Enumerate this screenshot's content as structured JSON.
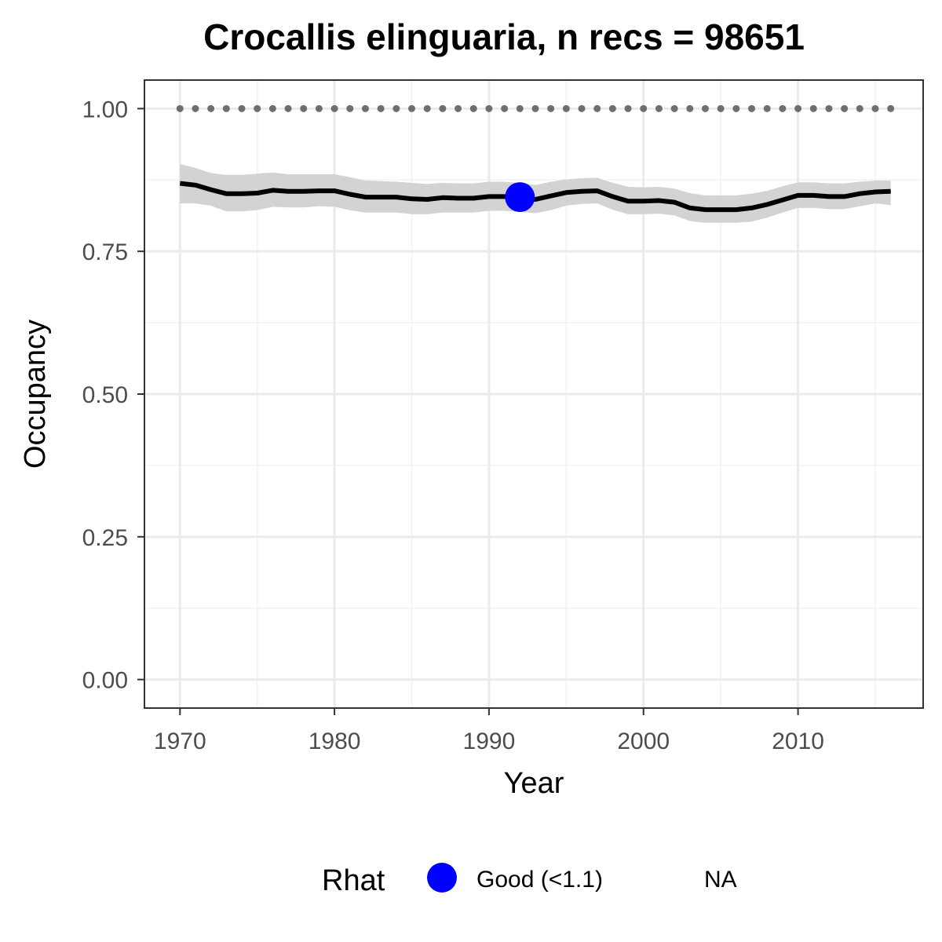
{
  "chart_data": {
    "type": "line",
    "title": "Crocallis elinguaria, n recs = 98651",
    "xlabel": "Year",
    "ylabel": "Occupancy",
    "xlim": [
      1967.7,
      2018.1
    ],
    "ylim": [
      -0.05,
      1.05
    ],
    "x_ticks": [
      1970,
      1980,
      1990,
      2000,
      2010
    ],
    "x_tick_labels": [
      "1970",
      "1980",
      "1990",
      "2000",
      "2010"
    ],
    "y_ticks": [
      0,
      0.25,
      0.5,
      0.75,
      1.0
    ],
    "y_tick_labels": [
      "0.00",
      "0.25",
      "0.50",
      "0.75",
      "1.00"
    ],
    "grid": true,
    "x": [
      1970,
      1971,
      1972,
      1973,
      1974,
      1975,
      1976,
      1977,
      1978,
      1979,
      1980,
      1981,
      1982,
      1983,
      1984,
      1985,
      1986,
      1987,
      1988,
      1989,
      1990,
      1991,
      1992,
      1993,
      1994,
      1995,
      1996,
      1997,
      1998,
      1999,
      2000,
      2001,
      2002,
      2003,
      2004,
      2005,
      2006,
      2007,
      2008,
      2009,
      2010,
      2011,
      2012,
      2013,
      2014,
      2015,
      2016
    ],
    "series": [
      {
        "type": "line",
        "color": "#000000",
        "values": [
          0.869,
          0.866,
          0.858,
          0.851,
          0.851,
          0.852,
          0.857,
          0.855,
          0.855,
          0.856,
          0.856,
          0.85,
          0.845,
          0.845,
          0.845,
          0.842,
          0.841,
          0.844,
          0.843,
          0.843,
          0.846,
          0.846,
          0.844,
          0.841,
          0.847,
          0.853,
          0.855,
          0.856,
          0.846,
          0.838,
          0.838,
          0.839,
          0.836,
          0.826,
          0.823,
          0.823,
          0.823,
          0.826,
          0.832,
          0.84,
          0.848,
          0.848,
          0.846,
          0.846,
          0.851,
          0.854,
          0.855
        ]
      },
      {
        "type": "ribbon",
        "color": "#d3d3d3",
        "upper": [
          0.903,
          0.896,
          0.887,
          0.884,
          0.884,
          0.886,
          0.888,
          0.885,
          0.885,
          0.885,
          0.885,
          0.88,
          0.874,
          0.873,
          0.872,
          0.87,
          0.868,
          0.87,
          0.869,
          0.869,
          0.872,
          0.872,
          0.87,
          0.866,
          0.872,
          0.876,
          0.878,
          0.879,
          0.87,
          0.863,
          0.862,
          0.863,
          0.86,
          0.852,
          0.848,
          0.848,
          0.848,
          0.851,
          0.856,
          0.864,
          0.871,
          0.871,
          0.869,
          0.869,
          0.872,
          0.874,
          0.874
        ],
        "lower": [
          0.834,
          0.834,
          0.83,
          0.82,
          0.82,
          0.822,
          0.828,
          0.827,
          0.827,
          0.829,
          0.828,
          0.822,
          0.818,
          0.818,
          0.818,
          0.815,
          0.815,
          0.818,
          0.818,
          0.818,
          0.821,
          0.821,
          0.819,
          0.817,
          0.822,
          0.83,
          0.833,
          0.834,
          0.823,
          0.815,
          0.815,
          0.816,
          0.813,
          0.803,
          0.8,
          0.8,
          0.8,
          0.802,
          0.809,
          0.818,
          0.826,
          0.826,
          0.824,
          0.824,
          0.829,
          0.834,
          0.831
        ]
      },
      {
        "type": "dotted-line",
        "color": "#6e6e6e",
        "values": [
          1,
          1,
          1,
          1,
          1,
          1,
          1,
          1,
          1,
          1,
          1,
          1,
          1,
          1,
          1,
          1,
          1,
          1,
          1,
          1,
          1,
          1,
          1,
          1,
          1,
          1,
          1,
          1,
          1,
          1,
          1,
          1,
          1,
          1,
          1,
          1,
          1,
          1,
          1,
          1,
          1,
          1,
          1,
          1,
          1,
          1,
          1
        ]
      },
      {
        "type": "point",
        "name": "Good (<1.1)",
        "color": "#0000ff",
        "x": [
          1992
        ],
        "values": [
          0.845
        ]
      }
    ],
    "legend": {
      "title": "Rhat",
      "position": "bottom",
      "entries": [
        {
          "label": "Good (<1.1)",
          "color": "#0000ff",
          "marker": "circle"
        },
        {
          "label": "NA",
          "color": null,
          "marker": "none"
        }
      ]
    }
  }
}
